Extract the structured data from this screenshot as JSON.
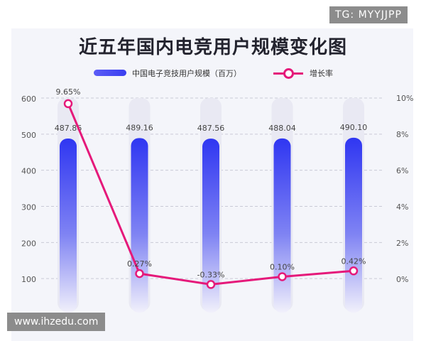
{
  "tag": "TG: MYYJJPP",
  "watermark": "www.ihzedu.com",
  "chart_data": {
    "type": "bar",
    "title": "近五年国内电竞用户规模变化图",
    "categories": [
      "",
      "",
      "",
      "",
      ""
    ],
    "series": [
      {
        "name": "中国电子竞技用户规模（百万）",
        "type": "bar",
        "axis": "left",
        "values": [
          487.86,
          489.16,
          487.56,
          488.04,
          490.1
        ],
        "labels": [
          "487.86",
          "489.16",
          "487.56",
          "488.04",
          "490.10"
        ]
      },
      {
        "name": "增长率",
        "type": "line",
        "axis": "right",
        "values": [
          9.65,
          0.27,
          -0.33,
          0.1,
          0.42
        ],
        "labels": [
          "9.65%",
          "0.27%",
          "-0.33%",
          "0.10%",
          "0.42%"
        ]
      }
    ],
    "y_left": {
      "ylim": [
        0,
        600
      ],
      "ticks": [
        "100",
        "200",
        "300",
        "400",
        "500",
        "600"
      ]
    },
    "y_right": {
      "ylim": [
        -2,
        10
      ],
      "ticks": [
        "0%",
        "2%",
        "4%",
        "6%",
        "8%",
        "10%"
      ]
    },
    "grid": true,
    "legend_position": "top",
    "colors": {
      "bar_top": "#2f36f2",
      "bar_bottom": "#f1f0fb",
      "track": "#e9e9f3",
      "line": "#e5197a",
      "grid": "#c9cad6"
    }
  }
}
